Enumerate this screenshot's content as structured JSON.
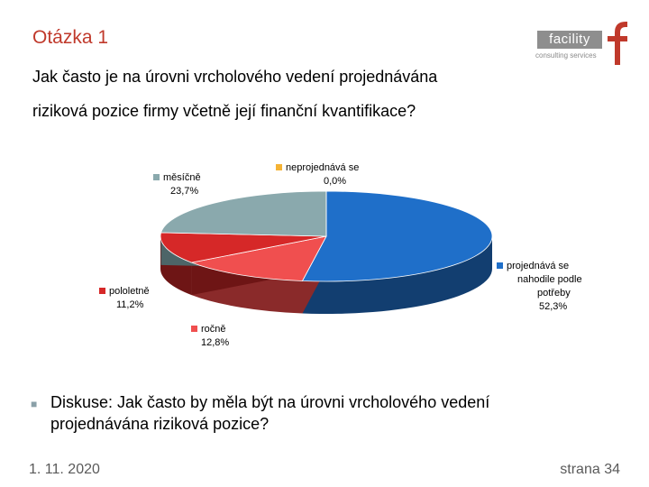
{
  "slide": {
    "title": "Otázka 1",
    "question_line1": "Jak často je na úrovni vrcholového vedení projednávána",
    "question_line2": "riziková pozice firmy včetně její finanční kvantifikace?",
    "discussion": "Diskuse: Jak často by měla být na úrovni vrcholového vedení projednávána riziková pozice?",
    "date": "1. 11. 2020",
    "page": "strana 34"
  },
  "logo": {
    "word": "facility",
    "sub": "consulting services",
    "color": "#8e8e8e",
    "accent": "#c0392b"
  },
  "chart_data": {
    "type": "pie",
    "title": "",
    "legend": "none",
    "slices": [
      {
        "label_lines": [
          "projednává se",
          "nahodile podle",
          "potřeby"
        ],
        "value": 52.3,
        "value_label": "52,3%",
        "color": "#1f6fc9",
        "side_color": "#123e70"
      },
      {
        "label_lines": [
          "ročně"
        ],
        "value": 12.8,
        "value_label": "12,8%",
        "color": "#f04f4f",
        "side_color": "#8a2a2a"
      },
      {
        "label_lines": [
          "pololetně"
        ],
        "value": 11.2,
        "value_label": "11,2%",
        "color": "#d62828",
        "side_color": "#6e1515"
      },
      {
        "label_lines": [
          "měsíčně"
        ],
        "value": 23.7,
        "value_label": "23,7%",
        "color": "#8aa9ad",
        "side_color": "#4d6568"
      },
      {
        "label_lines": [
          "neprojednává se"
        ],
        "value": 0.0,
        "value_label": "0,0%",
        "color": "#f5b335",
        "side_color": "#9a6e1e"
      }
    ]
  }
}
